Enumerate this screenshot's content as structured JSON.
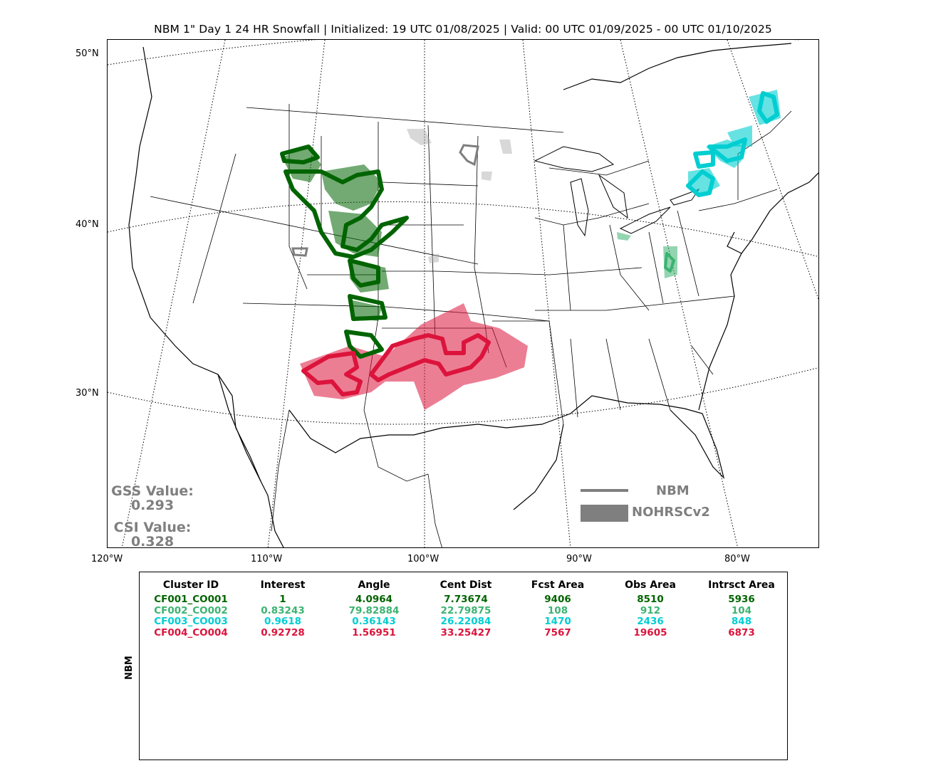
{
  "title": "NBM 1\" Day 1 24 HR Snowfall | Initialized: 19 UTC 01/08/2025 | Valid: 00 UTC 01/09/2025 - 00 UTC 01/10/2025",
  "lat_labels": [
    "50°N",
    "40°N",
    "30°N"
  ],
  "lon_labels": [
    "120°W",
    "110°W",
    "100°W",
    "90°W",
    "80°W"
  ],
  "stats": {
    "gss_label": "GSS Value:",
    "gss_value": "0.293",
    "csi_label": "CSI Value:",
    "csi_value": "0.328"
  },
  "legend": {
    "line_label": "NBM",
    "fill_label": "NOHRSCv2",
    "color": "#7f7f7f"
  },
  "colors": {
    "cluster1": "#006400",
    "cluster2": "#3cb371",
    "cluster3": "#00ced1",
    "cluster4": "#dc143c",
    "unmatched": "#a9a9a9"
  },
  "table": {
    "side_label": "NBM",
    "headers": [
      "Cluster ID",
      "Interest",
      "Angle",
      "Cent Dist",
      "Fcst Area",
      "Obs Area",
      "Intrsct Area"
    ],
    "rows": [
      {
        "color": "#006400",
        "cells": [
          "CF001_CO001",
          "1",
          "4.0964",
          "7.73674",
          "9406",
          "8510",
          "5936"
        ]
      },
      {
        "color": "#3cb371",
        "cells": [
          "CF002_CO002",
          "0.83243",
          "79.82884",
          "22.79875",
          "108",
          "912",
          "104"
        ]
      },
      {
        "color": "#00ced1",
        "cells": [
          "CF003_CO003",
          "0.9618",
          "0.36143",
          "26.22084",
          "1470",
          "2436",
          "848"
        ]
      },
      {
        "color": "#dc143c",
        "cells": [
          "CF004_CO004",
          "0.92728",
          "1.56951",
          "33.25427",
          "7567",
          "19605",
          "6873"
        ]
      }
    ]
  }
}
